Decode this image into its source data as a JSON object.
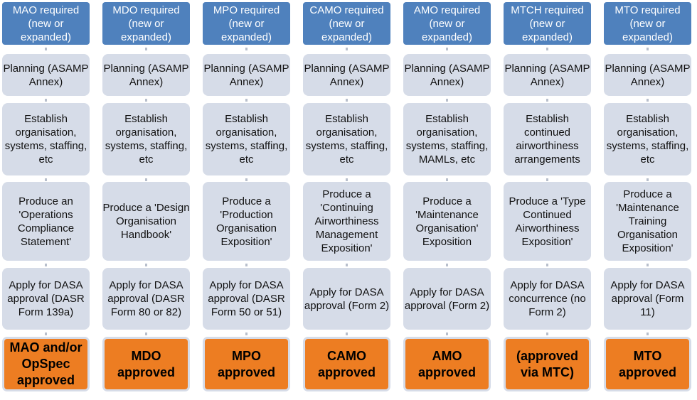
{
  "colors": {
    "header": "#4f81bd",
    "step": "#d6dce8",
    "final": "#ed7d22"
  },
  "columns": [
    {
      "header": "MAO required (new or expanded)",
      "planning": "Planning (ASAMP Annex)",
      "establish": "Establish organisation, systems, staffing, etc",
      "produce": "Produce an 'Operations Compliance Statement'",
      "apply": "Apply for DASA approval (DASR Form 139a)",
      "result": "MAO and/or OpSpec approved"
    },
    {
      "header": "MDO required (new or expanded)",
      "planning": "Planning (ASAMP Annex)",
      "establish": "Establish organisation, systems, staffing, etc",
      "produce": "Produce a 'Design Organisation Handbook'",
      "apply": "Apply for DASA approval (DASR Form 80 or 82)",
      "result": "MDO approved"
    },
    {
      "header": "MPO required (new or expanded)",
      "planning": "Planning (ASAMP Annex)",
      "establish": "Establish organisation, systems, staffing, etc",
      "produce": "Produce a 'Production Organisation Exposition'",
      "apply": "Apply for DASA approval (DASR Form 50 or 51)",
      "result": "MPO approved"
    },
    {
      "header": "CAMO required (new or expanded)",
      "planning": "Planning (ASAMP Annex)",
      "establish": "Establish organisation, systems, staffing, etc",
      "produce": "Produce a 'Continuing Airworthiness Management Exposition'",
      "apply": "Apply for DASA approval (Form 2)",
      "result": "CAMO approved"
    },
    {
      "header": "AMO required (new or expanded)",
      "planning": "Planning (ASAMP Annex)",
      "establish": "Establish organisation, systems, staffing, MAMLs, etc",
      "produce": "Produce a 'Maintenance Organisation' Exposition",
      "apply": "Apply for DASA approval (Form 2)",
      "result": "AMO approved"
    },
    {
      "header": "MTCH required (new or expanded)",
      "planning": "Planning (ASAMP Annex)",
      "establish": "Establish continued airworthiness arrangements",
      "produce": "Produce a 'Type Continued Airworthiness Exposition'",
      "apply": "Apply for DASA concurrence (no Form 2)",
      "result": "(approved via MTC)"
    },
    {
      "header": "MTO required (new or expanded)",
      "planning": "Planning (ASAMP Annex)",
      "establish": "Establish organisation, systems, staffing, etc",
      "produce": "Produce a 'Maintenance Training Organisation Exposition'",
      "apply": "Apply for DASA approval (Form 11)",
      "result": "MTO approved"
    }
  ]
}
